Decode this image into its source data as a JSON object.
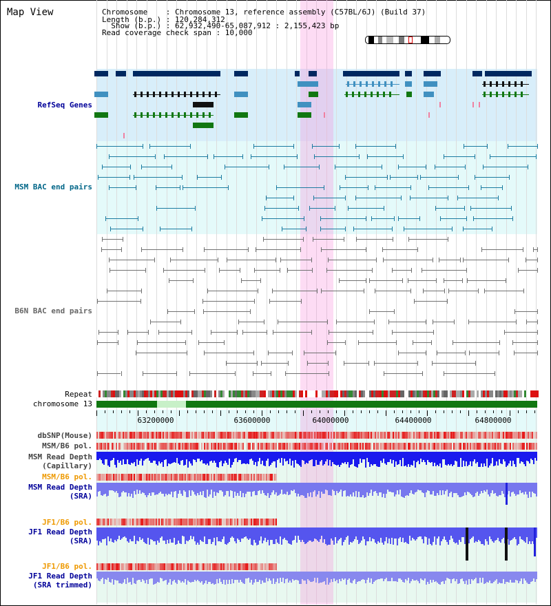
{
  "title": "Map View",
  "info": {
    "chromosome": "Chromosome    : Chromosome 13, reference assembly (C57BL/6J) (Build 37)",
    "length": "Length (b.p.) : 120,284,312",
    "show": "  Show (b.p.) : 62,932,490-65,087,912 : 2,155,423 bp",
    "read_coverage": "Read coverage check span : 10,000"
  },
  "tracks": {
    "refseq": "RefSeq Genes",
    "msm_bac": "MSM BAC end pairs",
    "b6n_bac": "B6N BAC end pairs",
    "repeat": "Repeat",
    "chromosome": "chromosome 13",
    "dbsnp": "dbSNP(Mouse)",
    "msm_b6_pol_1": "MSM/B6 pol.",
    "msm_read_depth_cap": "MSM Read Depth\n(Capillary)",
    "msm_b6_pol_2": "MSM/B6 pol.",
    "msm_read_depth_sra": "MSM Read Depth\n(SRA)",
    "jf1_b6_pol_1": "JF1/B6 pol.",
    "jf1_read_depth_sra": "JF1 Read Depth\n(SRA)",
    "jf1_b6_pol_2": "JF1/B6 pol.",
    "jf1_read_depth_trim": "JF1 Read Depth\n(SRA trimmed)"
  },
  "axis_ticks": [
    "63200000",
    "63600000",
    "64000000",
    "64400000",
    "64800000"
  ],
  "colors": {
    "refseq_bg": "#d8eefa",
    "bac_bg": "#e4fafa",
    "depth_bg": "#e6faf6",
    "gene_navy": "#002860",
    "gene_blue": "#4090c0",
    "gene_green": "#117711",
    "msm_line": "#1a7aa0",
    "b6n_line": "#707070",
    "label_navy": "#000099",
    "label_teal": "#006688",
    "label_gray": "#666666",
    "label_orange": "#ee9900"
  }
}
